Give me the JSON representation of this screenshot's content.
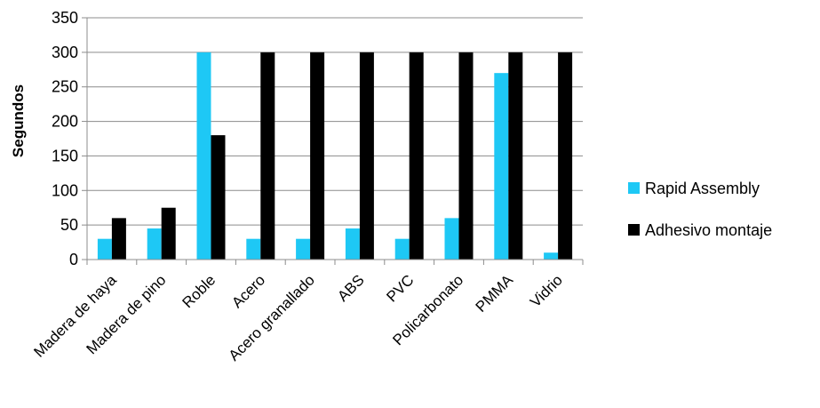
{
  "chart_data": {
    "type": "bar",
    "title": "",
    "xlabel": "",
    "ylabel": "Segundos",
    "ylim": [
      0,
      350
    ],
    "yticks": [
      0,
      50,
      100,
      150,
      200,
      250,
      300,
      350
    ],
    "grid": true,
    "legend_position": "right",
    "categories": [
      "Madera de haya",
      "Madera de pino",
      "Roble",
      "Acero",
      "Acero granallado",
      "ABS",
      "PVC",
      "Policarbonato",
      "PMMA",
      "Vidrio"
    ],
    "series": [
      {
        "name": "Rapid Assembly",
        "color": "#1EC8F5",
        "values": [
          30,
          45,
          300,
          30,
          30,
          45,
          30,
          60,
          270,
          10
        ]
      },
      {
        "name": "Adhesivo montaje",
        "color": "#000000",
        "values": [
          60,
          75,
          180,
          300,
          300,
          300,
          300,
          300,
          300,
          300
        ]
      }
    ]
  }
}
